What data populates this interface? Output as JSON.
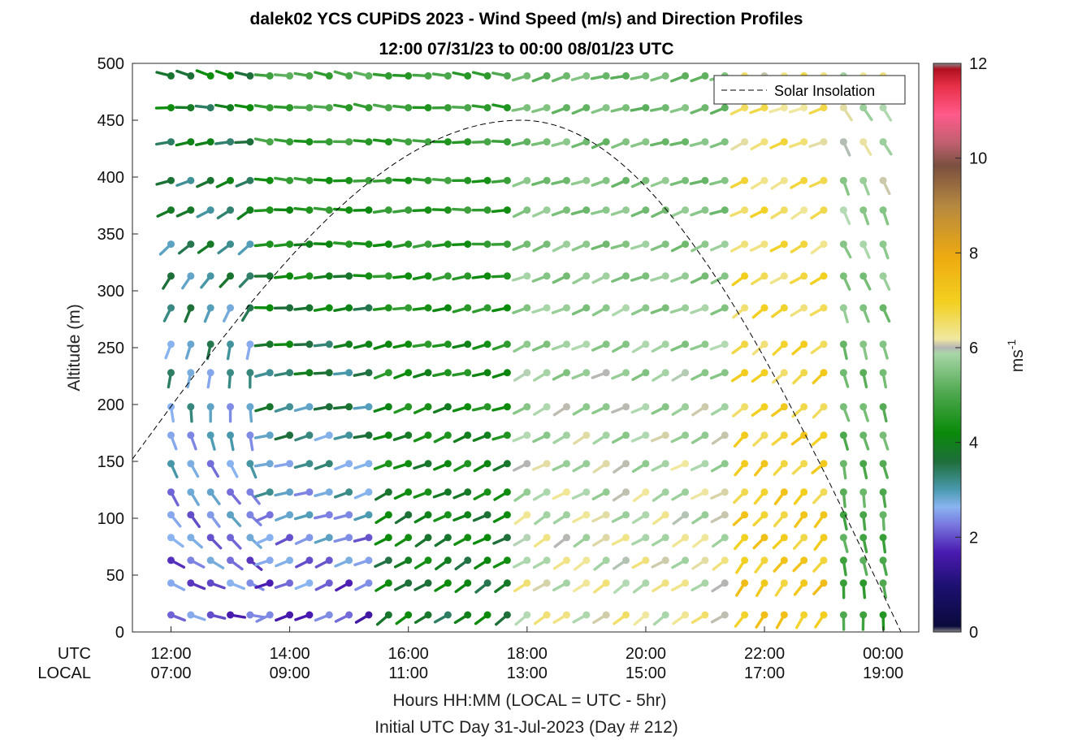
{
  "chart_data": {
    "type": "wind-barb-profile",
    "title": "dalek02 YCS CUPiDS 2023 - Wind Speed (m/s) and Direction Profiles",
    "subtitle": "12:00 07/31/23 to 00:00 08/01/23  UTC",
    "ylabel": "Altitude (m)",
    "xlabel": "Hours HH:MM  (LOCAL = UTC - 5hr)",
    "xlabel2": "Initial UTC Day 31-Jul-2023 (Day # 212)",
    "xrow_labels": {
      "utc": "UTC",
      "local": "LOCAL"
    },
    "xlim_hours_utc": [
      11.35,
      24.6
    ],
    "ylim": [
      0,
      500
    ],
    "yticks": [
      "0",
      "50",
      "100",
      "150",
      "200",
      "250",
      "300",
      "350",
      "400",
      "450",
      "500"
    ],
    "xticks": [
      {
        "hour": 12,
        "utc": "12:00",
        "local": "07:00"
      },
      {
        "hour": 14,
        "utc": "14:00",
        "local": "09:00"
      },
      {
        "hour": 16,
        "utc": "16:00",
        "local": "11:00"
      },
      {
        "hour": 18,
        "utc": "18:00",
        "local": "13:00"
      },
      {
        "hour": 20,
        "utc": "20:00",
        "local": "15:00"
      },
      {
        "hour": 22,
        "utc": "22:00",
        "local": "17:00"
      },
      {
        "hour": 24,
        "utc": "00:00",
        "local": "19:00"
      }
    ],
    "time_start_hour": 12.0,
    "time_step_hours": 0.3333,
    "time_count": 37,
    "altitudes": [
      15,
      43,
      63,
      83,
      103,
      123,
      148,
      173,
      198,
      228,
      253,
      285,
      313,
      341,
      371,
      397,
      431,
      461,
      489
    ],
    "colorbar": {
      "label": "ms",
      "label_superscript": "-1",
      "range": [
        0,
        12
      ],
      "ticks": [
        "0",
        "2",
        "4",
        "6",
        "8",
        "10",
        "12"
      ]
    },
    "legend": {
      "entries": [
        {
          "name": "Solar Insolation",
          "style": "dashed"
        }
      ],
      "position": "top-right"
    },
    "solar_insolation": {
      "peak_hour_utc": 17.9,
      "peak_altitude": 450,
      "end_hour_utc": 24.3,
      "start_altitude_at_xmin": 152
    },
    "speed_regimes": [
      {
        "until_hour": 13.5,
        "speed_low": 1.9,
        "speed_high": 3.3,
        "dir_low": 105,
        "dir_high": 285
      },
      {
        "until_hour": 15.5,
        "speed_low": 1.8,
        "speed_high": 4.4,
        "dir_low": 245,
        "dir_high": 280
      },
      {
        "until_hour": 17.8,
        "speed_low": 3.2,
        "speed_high": 4.2,
        "dir_low": 235,
        "dir_high": 278
      },
      {
        "until_hour": 21.5,
        "speed_low": 6.2,
        "speed_high": 5.0,
        "dir_low": 235,
        "dir_high": 255
      },
      {
        "until_hour": 23.0,
        "speed_low": 7.2,
        "speed_high": 6.4,
        "dir_low": 215,
        "dir_high": 250
      },
      {
        "until_hour": 24.0,
        "speed_low": 4.2,
        "speed_high": 6.1,
        "dir_low": 175,
        "dir_high": 150
      }
    ]
  }
}
